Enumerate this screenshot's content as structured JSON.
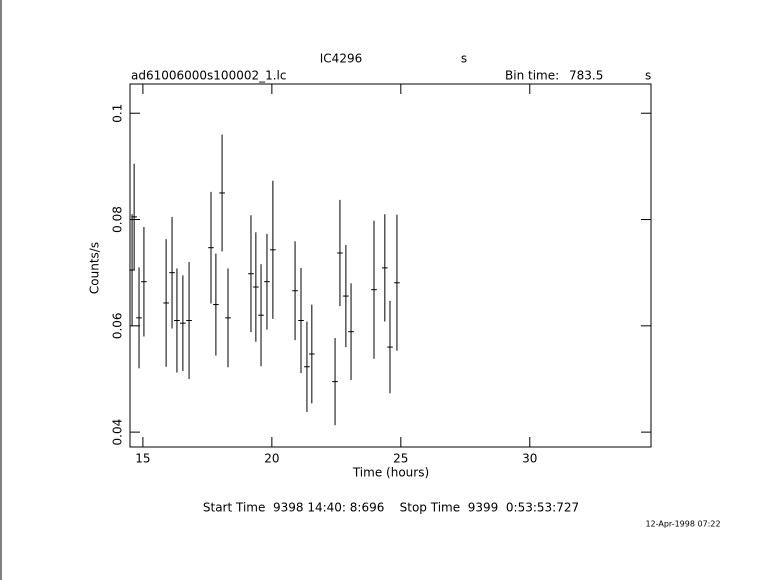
{
  "chart_data": {
    "type": "errorbar",
    "title": "IC4296",
    "title_unit": "s",
    "filename": "ad61006000s100002_1.lc",
    "bin_time_label": "Bin time:",
    "bin_time": 783.5,
    "bin_time_unit": "s",
    "xlabel": "Time (hours)",
    "ylabel": "Counts/s",
    "footer": "Start Time  9398 14:40: 8:696    Stop Time  9399  0:53:53:727",
    "date": "12-Apr-1998 07:22",
    "color": "#000000",
    "x": [
      14.58,
      14.66,
      14.85,
      15.04,
      15.9,
      16.13,
      16.32,
      16.55,
      16.79,
      17.64,
      17.83,
      18.07,
      18.3,
      19.19,
      19.38,
      19.58,
      19.81,
      20.04,
      20.9,
      21.13,
      21.36,
      21.55,
      22.45,
      22.64,
      22.87,
      23.07,
      23.96,
      24.38,
      24.58,
      24.85
    ],
    "values": [
      0.0705,
      0.0805,
      0.0615,
      0.0683,
      0.0643,
      0.07,
      0.061,
      0.0605,
      0.061,
      0.0747,
      0.064,
      0.085,
      0.0615,
      0.0698,
      0.0673,
      0.062,
      0.0683,
      0.0743,
      0.0666,
      0.061,
      0.0523,
      0.0547,
      0.0495,
      0.0737,
      0.0656,
      0.0589,
      0.0668,
      0.0709,
      0.056,
      0.0681
    ],
    "errors": [
      0.0105,
      0.01,
      0.0095,
      0.0103,
      0.012,
      0.0105,
      0.0098,
      0.009,
      0.011,
      0.0105,
      0.0096,
      0.011,
      0.0093,
      0.011,
      0.0103,
      0.0096,
      0.009,
      0.013,
      0.0093,
      0.0099,
      0.0085,
      0.0093,
      0.0082,
      0.01,
      0.0096,
      0.0091,
      0.013,
      0.0101,
      0.0087,
      0.0128
    ],
    "xerr": 0.109,
    "xlim": [
      14.5,
      34.7
    ],
    "ylim": [
      0.0372,
      0.1055
    ],
    "xticks": [
      15,
      20,
      25,
      30
    ],
    "yticks": [
      0.04,
      0.06,
      0.08,
      0.1
    ]
  }
}
